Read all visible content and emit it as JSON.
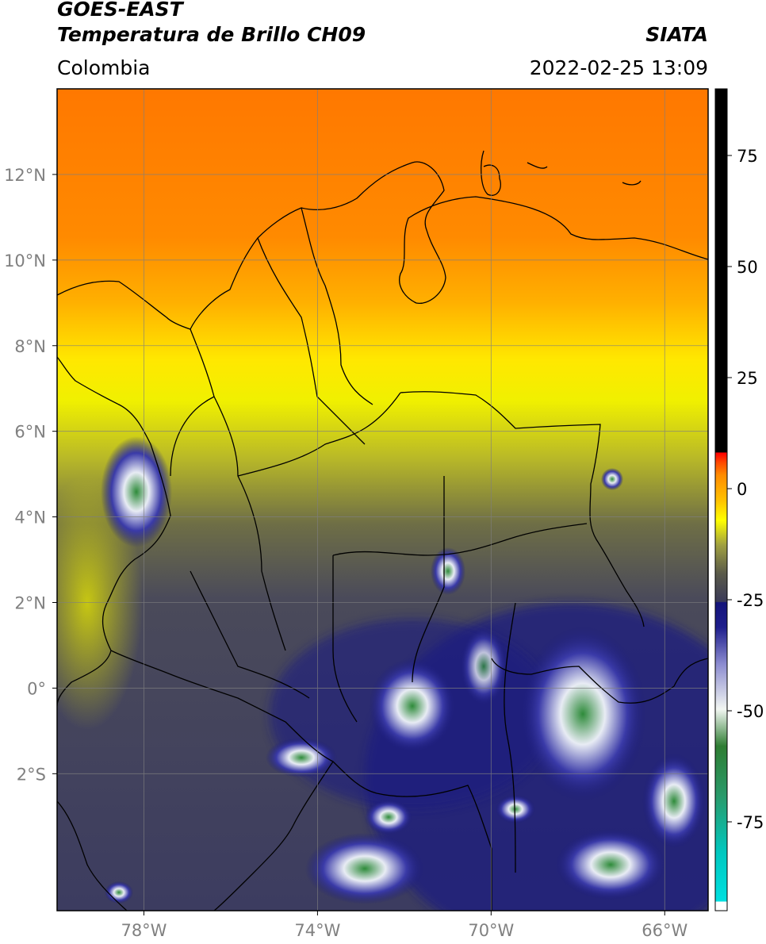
{
  "header": {
    "title_line1": "GOES-EAST",
    "title_line2": "Temperatura de Brillo CH09",
    "organization": "SIATA",
    "region": "Colombia",
    "datetime": "2022-02-25 13:09"
  },
  "map": {
    "lon_range": [
      -80,
      -65
    ],
    "lat_range": [
      -5.2,
      14
    ],
    "lon_ticks": [
      {
        "value": -78,
        "label": "78°W"
      },
      {
        "value": -74,
        "label": "74°W"
      },
      {
        "value": -70,
        "label": "70°W"
      },
      {
        "value": -66,
        "label": "66°W"
      }
    ],
    "lat_ticks": [
      {
        "value": 12,
        "label": "12°N"
      },
      {
        "value": 10,
        "label": "10°N"
      },
      {
        "value": 8,
        "label": "8°N"
      },
      {
        "value": 6,
        "label": "6°N"
      },
      {
        "value": 4,
        "label": "4°N"
      },
      {
        "value": 2,
        "label": "2°N"
      },
      {
        "value": 0,
        "label": "0°"
      },
      {
        "value": -2,
        "label": "2°S"
      }
    ],
    "grid": true
  },
  "colorbar": {
    "range": [
      -95,
      90
    ],
    "ticks": [
      {
        "value": 75,
        "label": "75"
      },
      {
        "value": 50,
        "label": "50"
      },
      {
        "value": 25,
        "label": "25"
      },
      {
        "value": 0,
        "label": "0"
      },
      {
        "value": -25,
        "label": "-25"
      },
      {
        "value": -50,
        "label": "-50"
      },
      {
        "value": -75,
        "label": "-75"
      }
    ],
    "colors": [
      "#ffffff",
      "#00e0e0",
      "#2a9a6a",
      "#2e7d32",
      "#f2f6f2",
      "#3a3ab0",
      "#14147a",
      "#3a3a58",
      "#6a6a40",
      "#ffff00",
      "#ffa000",
      "#ff6a00",
      "#ff0000",
      "#000000"
    ]
  }
}
